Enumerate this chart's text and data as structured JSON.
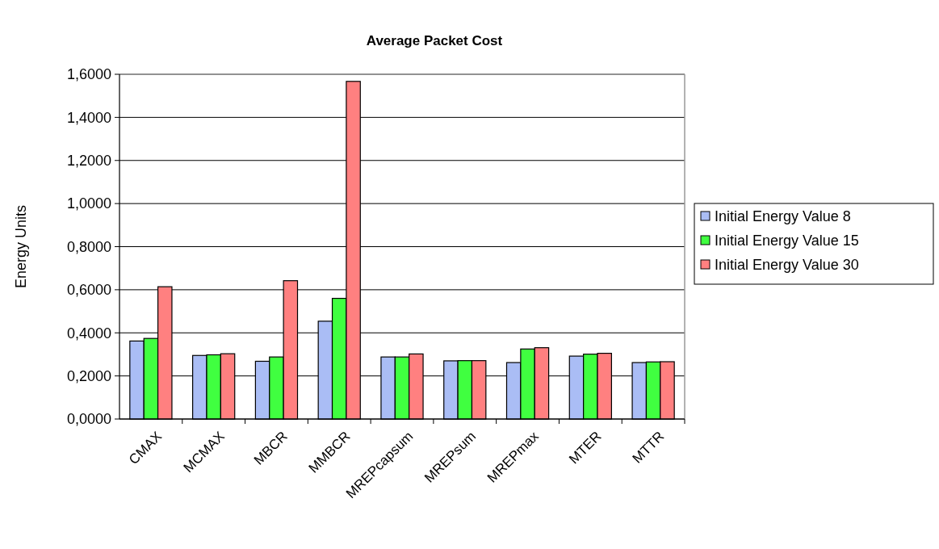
{
  "chart_data": {
    "type": "bar",
    "title": "Average Packet Cost",
    "ylabel": "Energy Units",
    "categories": [
      "CMAX",
      "MCMAX",
      "MBCR",
      "MMBCR",
      "MREPcapsum",
      "MREPsum",
      "MREPmax",
      "MTER",
      "MTTR"
    ],
    "series": [
      {
        "name": "Initial Energy Value 8",
        "color": "#aabdf5",
        "values": [
          0.362,
          0.295,
          0.268,
          0.454,
          0.288,
          0.27,
          0.262,
          0.292,
          0.262
        ]
      },
      {
        "name": "Initial Energy Value 15",
        "color": "#40ff40",
        "values": [
          0.374,
          0.298,
          0.288,
          0.56,
          0.288,
          0.271,
          0.325,
          0.301,
          0.265
        ]
      },
      {
        "name": "Initial Energy Value 30",
        "color": "#ff8080",
        "values": [
          0.614,
          0.303,
          0.642,
          1.567,
          0.302,
          0.271,
          0.331,
          0.305,
          0.266
        ]
      }
    ],
    "ylim": [
      0,
      1.6
    ],
    "yticks": [
      {
        "value": 0,
        "label": "0,0000"
      },
      {
        "value": 0.2,
        "label": "0,2000"
      },
      {
        "value": 0.4,
        "label": "0,4000"
      },
      {
        "value": 0.6,
        "label": "0,6000"
      },
      {
        "value": 0.8,
        "label": "0,8000"
      },
      {
        "value": 1.0,
        "label": "1,0000"
      },
      {
        "value": 1.2,
        "label": "1,2000"
      },
      {
        "value": 1.4,
        "label": "1,4000"
      },
      {
        "value": 1.6,
        "label": "1,6000"
      }
    ],
    "grid": "y",
    "legend": "right"
  }
}
